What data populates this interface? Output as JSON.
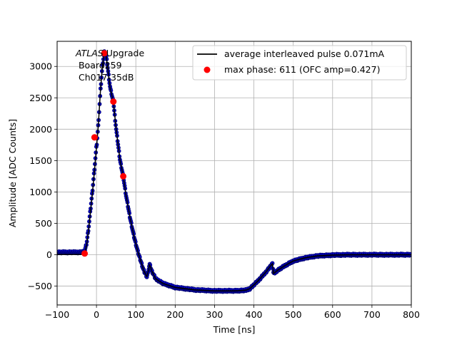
{
  "chart_data": {
    "type": "scatter",
    "title": "",
    "xlabel": "Time [ns]",
    "ylabel": "Amplitude [ADC Counts]",
    "xlim": [
      -100,
      800
    ],
    "ylim": [
      -800,
      3400
    ],
    "xticks": [
      -100,
      0,
      100,
      200,
      300,
      400,
      500,
      600,
      700,
      800
    ],
    "yticks": [
      -500,
      0,
      500,
      1000,
      1500,
      2000,
      2500,
      3000
    ],
    "grid": true,
    "legend_placement": "top-right",
    "annotation": {
      "italic": "ATLAS",
      "rest": " Upgrade",
      "line2": " Board259",
      "line3": " Ch017-35dB"
    },
    "series": [
      {
        "name": "average interleaved pulse 0.071mA",
        "kind": "line",
        "color": "#000000",
        "points": [
          [
            -100,
            5
          ],
          [
            -40,
            5
          ],
          [
            -30,
            20
          ],
          [
            -25,
            150
          ],
          [
            -20,
            400
          ],
          [
            -15,
            700
          ],
          [
            -10,
            1000
          ],
          [
            -5,
            1350
          ],
          [
            0,
            1700
          ],
          [
            5,
            2100
          ],
          [
            10,
            2600
          ],
          [
            15,
            3000
          ],
          [
            20,
            3230
          ],
          [
            25,
            3150
          ],
          [
            30,
            2900
          ],
          [
            35,
            2650
          ],
          [
            43,
            2430
          ],
          [
            50,
            2000
          ],
          [
            55,
            1750
          ],
          [
            60,
            1500
          ],
          [
            68,
            1250
          ],
          [
            75,
            950
          ],
          [
            85,
            600
          ],
          [
            95,
            300
          ],
          [
            105,
            50
          ],
          [
            115,
            -150
          ],
          [
            120,
            -250
          ],
          [
            128,
            -350
          ],
          [
            132,
            -250
          ],
          [
            135,
            -150
          ],
          [
            140,
            -250
          ],
          [
            150,
            -380
          ],
          [
            170,
            -460
          ],
          [
            200,
            -520
          ],
          [
            250,
            -560
          ],
          [
            300,
            -575
          ],
          [
            350,
            -575
          ],
          [
            380,
            -565
          ],
          [
            390,
            -540
          ],
          [
            400,
            -480
          ],
          [
            410,
            -420
          ],
          [
            420,
            -350
          ],
          [
            430,
            -280
          ],
          [
            440,
            -200
          ],
          [
            447,
            -140
          ],
          [
            450,
            -300
          ],
          [
            460,
            -250
          ],
          [
            480,
            -170
          ],
          [
            500,
            -100
          ],
          [
            530,
            -50
          ],
          [
            560,
            -20
          ],
          [
            600,
            -5
          ],
          [
            650,
            0
          ],
          [
            700,
            0
          ],
          [
            750,
            0
          ],
          [
            800,
            0
          ]
        ]
      },
      {
        "name": "max phase: 611 (OFC amp=0.427)",
        "kind": "points",
        "color": "#ff0000",
        "points": [
          [
            -30,
            20
          ],
          [
            -5,
            1870
          ],
          [
            20,
            3210
          ],
          [
            43,
            2440
          ],
          [
            68,
            1250
          ]
        ]
      },
      {
        "name": "",
        "kind": "dots",
        "color": "#0000cc",
        "edge_color": "#000066"
      }
    ]
  }
}
